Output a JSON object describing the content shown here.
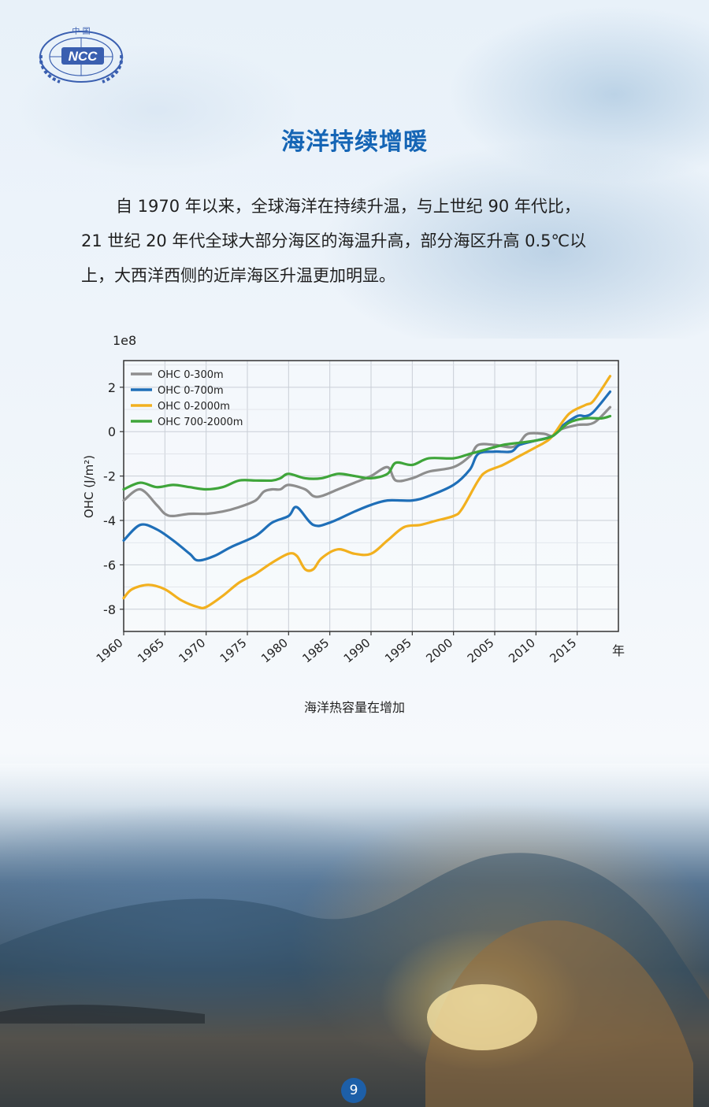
{
  "logo": {
    "text": "NCC",
    "top_text": "中 国",
    "icon": "ncc-globe-laurel-logo"
  },
  "title": "海洋持续增暖",
  "paragraph": [
    "自 1970 年以来，全球海洋在持续升温，与上世纪 90 年代比，",
    "21 世纪 20 年代全球大部分海区的海温升高，部分海区升高 0.5℃以",
    "上，大西洋西侧的近岸海区升温更加明显。"
  ],
  "caption": "海洋热容量在增加",
  "page_number": "9",
  "chart_data": {
    "type": "line",
    "title": "",
    "xlabel": "年",
    "ylabel": "OHC (J/m²)",
    "y_scale_label": "1e8",
    "xlim": [
      1960,
      2020
    ],
    "ylim": [
      -9,
      3.2
    ],
    "xticks": [
      1960,
      1965,
      1970,
      1975,
      1980,
      1985,
      1990,
      1995,
      2000,
      2005,
      2010,
      2015
    ],
    "xtick_labels": [
      "1960",
      "1965",
      "1970",
      "1975",
      "1980",
      "1985",
      "1990",
      "1995",
      "2000",
      "2005",
      "2010",
      "2015"
    ],
    "yticks": [
      2,
      0,
      -2,
      -4,
      -6,
      -8
    ],
    "ytick_labels": [
      "2",
      "0",
      "-2",
      "-4",
      "-6",
      "-8"
    ],
    "grid": true,
    "legend_position": "top-left",
    "series": [
      {
        "name": "OHC 0-300m",
        "color": "#8e8e8e",
        "points": [
          [
            1960,
            -3.1
          ],
          [
            1962,
            -2.6
          ],
          [
            1964,
            -3.3
          ],
          [
            1965,
            -3.7
          ],
          [
            1966,
            -3.8
          ],
          [
            1968,
            -3.7
          ],
          [
            1970,
            -3.7
          ],
          [
            1972,
            -3.6
          ],
          [
            1974,
            -3.4
          ],
          [
            1976,
            -3.1
          ],
          [
            1977,
            -2.7
          ],
          [
            1978,
            -2.6
          ],
          [
            1979,
            -2.6
          ],
          [
            1980,
            -2.4
          ],
          [
            1982,
            -2.6
          ],
          [
            1983,
            -2.9
          ],
          [
            1984,
            -2.9
          ],
          [
            1986,
            -2.6
          ],
          [
            1988,
            -2.3
          ],
          [
            1990,
            -2.0
          ],
          [
            1992,
            -1.6
          ],
          [
            1993,
            -2.2
          ],
          [
            1995,
            -2.1
          ],
          [
            1997,
            -1.8
          ],
          [
            2000,
            -1.6
          ],
          [
            2002,
            -1.1
          ],
          [
            2003,
            -0.6
          ],
          [
            2005,
            -0.6
          ],
          [
            2007,
            -0.7
          ],
          [
            2008,
            -0.5
          ],
          [
            2009,
            -0.1
          ],
          [
            2011,
            -0.1
          ],
          [
            2012,
            -0.2
          ],
          [
            2013,
            0.1
          ],
          [
            2015,
            0.3
          ],
          [
            2017,
            0.4
          ],
          [
            2019,
            1.1
          ]
        ]
      },
      {
        "name": "OHC 0-700m",
        "color": "#1f6fb8",
        "points": [
          [
            1960,
            -4.9
          ],
          [
            1962,
            -4.2
          ],
          [
            1964,
            -4.4
          ],
          [
            1966,
            -4.9
          ],
          [
            1968,
            -5.5
          ],
          [
            1969,
            -5.8
          ],
          [
            1971,
            -5.6
          ],
          [
            1973,
            -5.2
          ],
          [
            1976,
            -4.7
          ],
          [
            1978,
            -4.1
          ],
          [
            1980,
            -3.8
          ],
          [
            1981,
            -3.4
          ],
          [
            1983,
            -4.2
          ],
          [
            1985,
            -4.1
          ],
          [
            1988,
            -3.6
          ],
          [
            1990,
            -3.3
          ],
          [
            1992,
            -3.1
          ],
          [
            1995,
            -3.1
          ],
          [
            1997,
            -2.9
          ],
          [
            2000,
            -2.4
          ],
          [
            2002,
            -1.7
          ],
          [
            2003,
            -1.0
          ],
          [
            2005,
            -0.9
          ],
          [
            2007,
            -0.9
          ],
          [
            2008,
            -0.6
          ],
          [
            2010,
            -0.4
          ],
          [
            2012,
            -0.2
          ],
          [
            2013,
            0.2
          ],
          [
            2015,
            0.7
          ],
          [
            2016,
            0.7
          ],
          [
            2017,
            0.9
          ],
          [
            2019,
            1.8
          ]
        ]
      },
      {
        "name": "OHC 0-2000m",
        "color": "#f2b01e",
        "points": [
          [
            1960,
            -7.5
          ],
          [
            1961,
            -7.1
          ],
          [
            1963,
            -6.9
          ],
          [
            1965,
            -7.1
          ],
          [
            1967,
            -7.6
          ],
          [
            1969,
            -7.9
          ],
          [
            1970,
            -7.9
          ],
          [
            1972,
            -7.4
          ],
          [
            1974,
            -6.8
          ],
          [
            1976,
            -6.4
          ],
          [
            1978,
            -5.9
          ],
          [
            1980,
            -5.5
          ],
          [
            1981,
            -5.6
          ],
          [
            1982,
            -6.2
          ],
          [
            1983,
            -6.2
          ],
          [
            1984,
            -5.7
          ],
          [
            1986,
            -5.3
          ],
          [
            1988,
            -5.5
          ],
          [
            1990,
            -5.5
          ],
          [
            1992,
            -4.9
          ],
          [
            1994,
            -4.3
          ],
          [
            1996,
            -4.2
          ],
          [
            1998,
            -4.0
          ],
          [
            2000,
            -3.8
          ],
          [
            2001,
            -3.5
          ],
          [
            2003,
            -2.2
          ],
          [
            2004,
            -1.8
          ],
          [
            2006,
            -1.5
          ],
          [
            2008,
            -1.1
          ],
          [
            2010,
            -0.7
          ],
          [
            2011,
            -0.5
          ],
          [
            2012,
            -0.2
          ],
          [
            2014,
            0.8
          ],
          [
            2016,
            1.2
          ],
          [
            2017,
            1.4
          ],
          [
            2019,
            2.5
          ]
        ]
      },
      {
        "name": "OHC 700-2000m",
        "color": "#3fa53a",
        "points": [
          [
            1960,
            -2.6
          ],
          [
            1962,
            -2.3
          ],
          [
            1964,
            -2.5
          ],
          [
            1966,
            -2.4
          ],
          [
            1968,
            -2.5
          ],
          [
            1970,
            -2.6
          ],
          [
            1972,
            -2.5
          ],
          [
            1974,
            -2.2
          ],
          [
            1976,
            -2.2
          ],
          [
            1978,
            -2.2
          ],
          [
            1979,
            -2.1
          ],
          [
            1980,
            -1.9
          ],
          [
            1982,
            -2.1
          ],
          [
            1984,
            -2.1
          ],
          [
            1986,
            -1.9
          ],
          [
            1988,
            -2.0
          ],
          [
            1990,
            -2.1
          ],
          [
            1992,
            -1.9
          ],
          [
            1993,
            -1.4
          ],
          [
            1995,
            -1.5
          ],
          [
            1997,
            -1.2
          ],
          [
            2000,
            -1.2
          ],
          [
            2002,
            -1.0
          ],
          [
            2004,
            -0.8
          ],
          [
            2006,
            -0.6
          ],
          [
            2008,
            -0.5
          ],
          [
            2010,
            -0.4
          ],
          [
            2012,
            -0.2
          ],
          [
            2014,
            0.4
          ],
          [
            2016,
            0.6
          ],
          [
            2018,
            0.6
          ],
          [
            2019,
            0.7
          ]
        ]
      }
    ]
  }
}
